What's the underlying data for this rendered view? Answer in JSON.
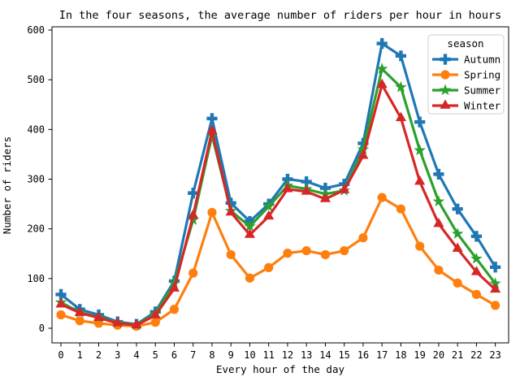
{
  "figure": {
    "title": "In the four seasons, the average number of riders per hour in hours",
    "xlabel": "Every hour of the day",
    "ylabel": "Number of riders"
  },
  "legend": {
    "title": "season",
    "position": "upper right",
    "entries": [
      "Autumn",
      "Spring",
      "Summer",
      "Winter"
    ]
  },
  "chart_data": {
    "type": "line",
    "title": "In the four seasons, the average number of riders per hour in hours",
    "xlabel": "Every hour of the day",
    "ylabel": "Number of riders",
    "x": [
      0,
      1,
      2,
      3,
      4,
      5,
      6,
      7,
      8,
      9,
      10,
      11,
      12,
      13,
      14,
      15,
      16,
      17,
      18,
      19,
      20,
      21,
      22,
      23
    ],
    "xtick_labels": [
      "0",
      "1",
      "2",
      "3",
      "4",
      "5",
      "6",
      "7",
      "8",
      "9",
      "10",
      "11",
      "12",
      "13",
      "14",
      "15",
      "16",
      "17",
      "18",
      "19",
      "20",
      "21",
      "22",
      "23"
    ],
    "yticks": [
      0,
      100,
      200,
      300,
      400,
      500,
      600
    ],
    "ylim": [
      0,
      600
    ],
    "grid": false,
    "legend_title": "season",
    "legend_position": "upper right",
    "series": [
      {
        "name": "Autumn",
        "color": "#1f77b4",
        "marker": "plus",
        "values": [
          68,
          38,
          27,
          13,
          8,
          33,
          95,
          272,
          422,
          252,
          215,
          250,
          300,
          295,
          282,
          290,
          372,
          573,
          548,
          415,
          310,
          240,
          185,
          123
        ]
      },
      {
        "name": "Spring",
        "color": "#ff7f0e",
        "marker": "circle",
        "values": [
          27,
          15,
          10,
          6,
          4,
          12,
          38,
          111,
          233,
          148,
          101,
          122,
          151,
          156,
          148,
          156,
          182,
          263,
          240,
          165,
          117,
          91,
          68,
          46
        ]
      },
      {
        "name": "Summer",
        "color": "#2ca02c",
        "marker": "star",
        "values": [
          52,
          32,
          22,
          11,
          7,
          29,
          90,
          218,
          388,
          236,
          205,
          245,
          287,
          280,
          270,
          277,
          360,
          522,
          485,
          358,
          255,
          190,
          140,
          90
        ]
      },
      {
        "name": "Winter",
        "color": "#d62728",
        "marker": "triangle",
        "values": [
          48,
          31,
          21,
          10,
          6,
          26,
          80,
          227,
          397,
          233,
          188,
          225,
          280,
          275,
          260,
          278,
          347,
          490,
          423,
          295,
          210,
          160,
          113,
          78
        ]
      }
    ]
  },
  "style": {
    "axis_color": "#000000",
    "legend_border_color": "#cccccc",
    "background": "#ffffff"
  }
}
